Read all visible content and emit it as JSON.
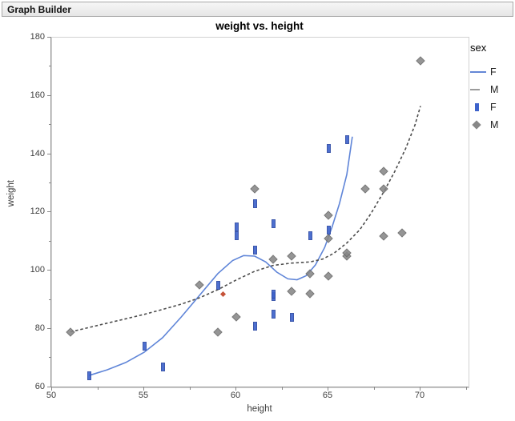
{
  "window": {
    "title": "Graph Builder"
  },
  "chart_data": {
    "type": "scatter",
    "title": "weight vs. height",
    "xlabel": "height",
    "ylabel": "weight",
    "xlim": [
      50,
      72.6
    ],
    "ylim": [
      60,
      180
    ],
    "x_major_ticks": [
      50,
      55,
      60,
      65,
      70
    ],
    "x_minor_ticks": [
      52.5,
      57.5,
      62.5,
      67.5,
      72.5
    ],
    "y_major_ticks": [
      60,
      80,
      100,
      120,
      140,
      160,
      180
    ],
    "y_minor_ticks": [
      70,
      90,
      110,
      130,
      150,
      170
    ],
    "grid": false,
    "legend": {
      "title": "sex",
      "position": "right",
      "entries": [
        {
          "swatch": "line",
          "label": "F"
        },
        {
          "swatch": "dash",
          "label": "M"
        },
        {
          "swatch": "rect",
          "label": "F"
        },
        {
          "swatch": "diamond",
          "label": "M"
        }
      ]
    },
    "series": [
      {
        "name": "F",
        "marker": "rect",
        "color": "#3e63cb",
        "points": [
          [
            52,
            64
          ],
          [
            55,
            74
          ],
          [
            56,
            67
          ],
          [
            59,
            95
          ],
          [
            60,
            112
          ],
          [
            60,
            115
          ],
          [
            61,
            81
          ],
          [
            61,
            107
          ],
          [
            61,
            123
          ],
          [
            62,
            85
          ],
          [
            62,
            91
          ],
          [
            62,
            92
          ],
          [
            62,
            116
          ],
          [
            63,
            84
          ],
          [
            64,
            112
          ],
          [
            65,
            114
          ],
          [
            65,
            142
          ],
          [
            66,
            145
          ]
        ]
      },
      {
        "name": "M",
        "marker": "diamond",
        "color": "#878787",
        "points": [
          [
            51,
            79
          ],
          [
            58,
            95
          ],
          [
            59,
            79
          ],
          [
            60,
            84
          ],
          [
            61,
            128
          ],
          [
            62,
            104
          ],
          [
            63,
            93
          ],
          [
            63,
            105
          ],
          [
            64,
            92
          ],
          [
            64,
            99
          ],
          [
            65,
            98
          ],
          [
            65,
            111
          ],
          [
            65,
            119
          ],
          [
            66,
            105
          ],
          [
            66,
            106
          ],
          [
            67,
            128
          ],
          [
            68,
            112
          ],
          [
            68,
            128
          ],
          [
            68,
            134
          ],
          [
            69,
            113
          ],
          [
            70,
            172
          ]
        ]
      },
      {
        "name": "highlighted",
        "marker": "small-diamond",
        "color": "#c24a2e",
        "points": [
          [
            59.3,
            92
          ]
        ]
      }
    ],
    "smoothers": [
      {
        "name": "F smoother",
        "style": "solid",
        "color": "#5f85d8",
        "points": [
          [
            52,
            64
          ],
          [
            53,
            66
          ],
          [
            54,
            68.5
          ],
          [
            55,
            72
          ],
          [
            56,
            77
          ],
          [
            57,
            84
          ],
          [
            58,
            91.5
          ],
          [
            59,
            99
          ],
          [
            59.8,
            103.5
          ],
          [
            60.4,
            105.2
          ],
          [
            61,
            105
          ],
          [
            61.6,
            103
          ],
          [
            62.2,
            99.5
          ],
          [
            62.8,
            97.2
          ],
          [
            63.3,
            96.9
          ],
          [
            63.8,
            98.3
          ],
          [
            64.3,
            102
          ],
          [
            64.8,
            108
          ],
          [
            65.2,
            115
          ],
          [
            65.6,
            123
          ],
          [
            66,
            133
          ],
          [
            66.3,
            146
          ]
        ]
      },
      {
        "name": "M smoother",
        "style": "dashed",
        "color": "#4d4d4d",
        "points": [
          [
            51,
            79
          ],
          [
            52,
            80.5
          ],
          [
            53,
            82
          ],
          [
            54,
            83.5
          ],
          [
            55,
            85
          ],
          [
            56,
            86.7
          ],
          [
            57,
            88.5
          ],
          [
            58,
            90.7
          ],
          [
            59,
            93.5
          ],
          [
            60,
            96.8
          ],
          [
            61,
            99.8
          ],
          [
            62,
            101.8
          ],
          [
            63,
            102.6
          ],
          [
            64,
            103
          ],
          [
            64.7,
            104
          ],
          [
            65.3,
            106
          ],
          [
            66,
            109.5
          ],
          [
            66.7,
            114
          ],
          [
            67.3,
            119.5
          ],
          [
            68,
            127
          ],
          [
            68.6,
            134
          ],
          [
            69.2,
            142
          ],
          [
            69.7,
            150
          ],
          [
            70,
            156.5
          ]
        ]
      }
    ]
  }
}
